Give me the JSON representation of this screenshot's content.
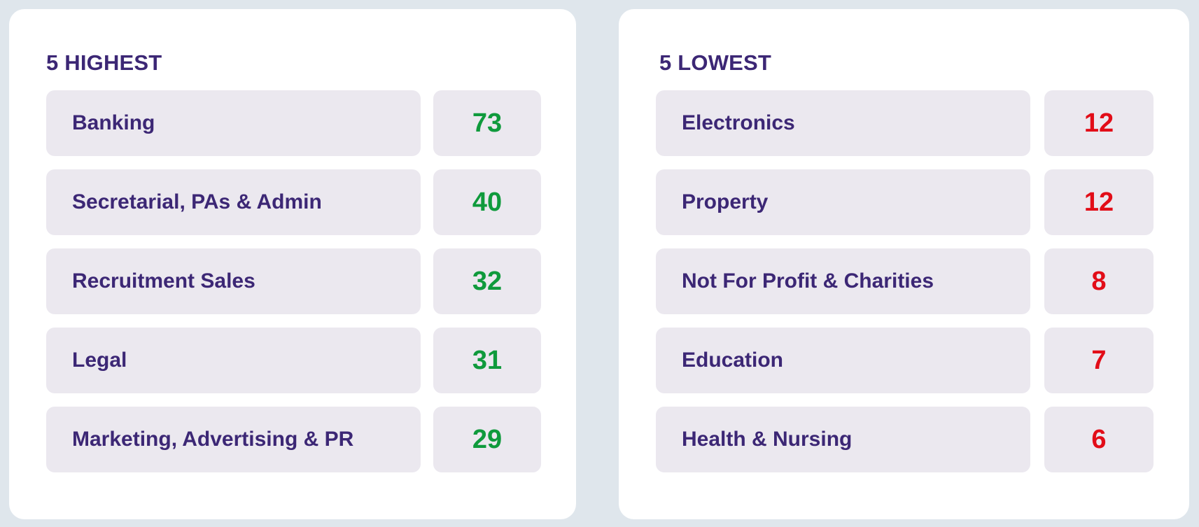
{
  "highest": {
    "title": "5 HIGHEST",
    "value_color": "#0f9a3c",
    "items": [
      {
        "label": "Banking",
        "value": "73"
      },
      {
        "label": "Secretarial, PAs & Admin",
        "value": "40"
      },
      {
        "label": "Recruitment Sales",
        "value": "32"
      },
      {
        "label": "Legal",
        "value": "31"
      },
      {
        "label": "Marketing, Advertising & PR",
        "value": "29"
      }
    ]
  },
  "lowest": {
    "title": "5 LOWEST",
    "value_color": "#e20d18",
    "items": [
      {
        "label": "Electronics",
        "value": "12"
      },
      {
        "label": "Property",
        "value": "12"
      },
      {
        "label": "Not For Profit & Charities",
        "value": "8"
      },
      {
        "label": "Education",
        "value": "7"
      },
      {
        "label": "Health & Nursing",
        "value": "6"
      }
    ]
  },
  "colors": {
    "background": "#dfe6ec",
    "panel": "#ffffff",
    "cell": "#ebe8ef",
    "text": "#3c2775"
  }
}
